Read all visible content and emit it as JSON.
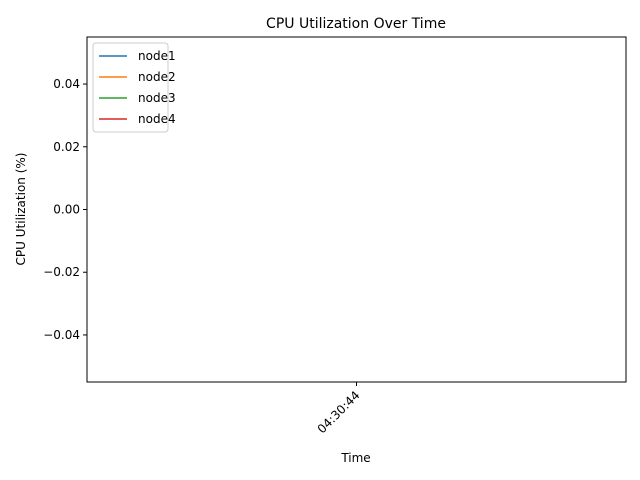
{
  "chart_data": {
    "type": "line",
    "title": "CPU Utilization Over Time",
    "xlabel": "Time",
    "ylabel": "CPU Utilization (%)",
    "x": [
      "04:30:44"
    ],
    "ylim": [
      -0.055,
      0.055
    ],
    "yticks": [
      -0.04,
      -0.02,
      0.0,
      0.02,
      0.04
    ],
    "ytick_labels": [
      "−0.04",
      "−0.02",
      "0.00",
      "0.02",
      "0.04"
    ],
    "xticks": [
      "04:30:44"
    ],
    "legend_position": "top-left",
    "grid": false,
    "series": [
      {
        "name": "node1",
        "color": "#1f77b4",
        "values": [
          null
        ]
      },
      {
        "name": "node2",
        "color": "#ff7f0e",
        "values": [
          null
        ]
      },
      {
        "name": "node3",
        "color": "#2ca02c",
        "values": [
          null
        ]
      },
      {
        "name": "node4",
        "color": "#d62728",
        "values": [
          null
        ]
      }
    ]
  }
}
